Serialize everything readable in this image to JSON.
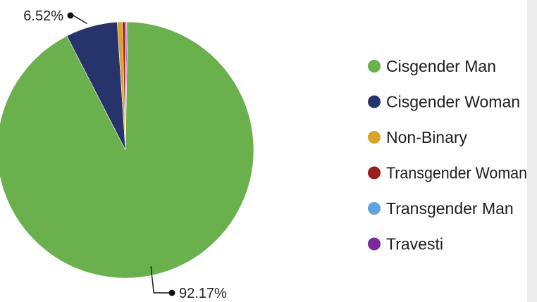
{
  "chart_data": {
    "type": "pie",
    "title": "",
    "categories": [
      "Cisgender Man",
      "Cisgender Woman",
      "Non-Binary",
      "Transgender Woman",
      "Transgender Man",
      "Travesti"
    ],
    "values": [
      92.17,
      6.52,
      0.65,
      0.36,
      0.15,
      0.15
    ],
    "colors": [
      "#6ab04c",
      "#27336b",
      "#dca326",
      "#9b1b1e",
      "#5fa4dc",
      "#7a2a9a"
    ],
    "data_labels": [
      {
        "category": "Cisgender Man",
        "text": "92.17%"
      },
      {
        "category": "Cisgender Woman",
        "text": "6.52%"
      }
    ],
    "legend": {
      "placement": "right",
      "entries": [
        "Cisgender Man",
        "Cisgender Woman",
        "Non-Binary",
        "Transgender Woman",
        "Transgender Man",
        "Travesti"
      ]
    }
  }
}
